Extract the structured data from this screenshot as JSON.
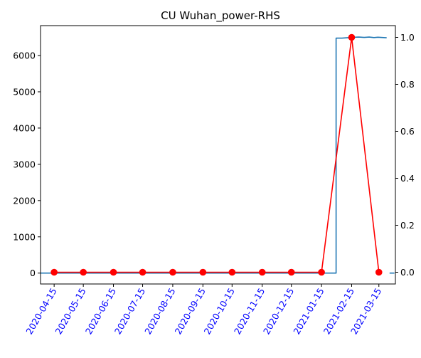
{
  "chart_data": {
    "type": "line",
    "title": "CU Wuhan_power-RHS",
    "xlabel": "",
    "ylabel_left": "",
    "ylabel_right": "",
    "x_tick_labels": [
      "2020-04-15",
      "2020-05-15",
      "2020-06-15",
      "2020-07-15",
      "2020-08-15",
      "2020-09-15",
      "2020-10-15",
      "2020-11-15",
      "2020-12-15",
      "2021-01-15",
      "2021-02-15",
      "2021-03-15"
    ],
    "x_tick_color": "#0000ff",
    "x_range": [
      "2020-04-01",
      "2021-04-01"
    ],
    "y_left": {
      "lim": [
        -300,
        6825
      ],
      "ticks": [
        0,
        1000,
        2000,
        3000,
        4000,
        5000,
        6000
      ]
    },
    "y_right": {
      "lim": [
        -0.05,
        1.05
      ],
      "ticks": [
        0.0,
        0.2,
        0.4,
        0.6,
        0.8,
        1.0
      ]
    },
    "series": [
      {
        "axis": "left",
        "color": "#1f77b4",
        "style": "line",
        "points": [
          {
            "x": "2020-04-01",
            "y": 0
          },
          {
            "x": "2021-01-30",
            "y": 0
          },
          {
            "x": "2021-01-30",
            "y": 6480
          },
          {
            "x": "2021-02-05",
            "y": 6480
          },
          {
            "x": "2021-02-15",
            "y": 6500
          },
          {
            "x": "2021-02-22",
            "y": 6510
          },
          {
            "x": "2021-02-28",
            "y": 6500
          },
          {
            "x": "2021-03-05",
            "y": 6510
          },
          {
            "x": "2021-03-10",
            "y": 6495
          },
          {
            "x": "2021-03-14",
            "y": 6505
          },
          {
            "x": "2021-03-23",
            "y": 6490
          },
          {
            "x": "2021-03-23",
            "y": null
          },
          {
            "x": "2021-03-26",
            "y": 0
          },
          {
            "x": "2021-03-31",
            "y": 0
          }
        ]
      },
      {
        "axis": "right",
        "color": "#ff0000",
        "style": "line-marker",
        "points": [
          {
            "x": "2020-04-15",
            "y": 0
          },
          {
            "x": "2020-05-15",
            "y": 0
          },
          {
            "x": "2020-06-15",
            "y": 0
          },
          {
            "x": "2020-07-15",
            "y": 0
          },
          {
            "x": "2020-08-15",
            "y": 0
          },
          {
            "x": "2020-09-15",
            "y": 0
          },
          {
            "x": "2020-10-15",
            "y": 0
          },
          {
            "x": "2020-11-15",
            "y": 0
          },
          {
            "x": "2020-12-15",
            "y": 0
          },
          {
            "x": "2021-01-15",
            "y": 0
          },
          {
            "x": "2021-02-15",
            "y": 1
          },
          {
            "x": "2021-03-15",
            "y": 0
          }
        ]
      }
    ],
    "grid": false,
    "legend": false
  }
}
